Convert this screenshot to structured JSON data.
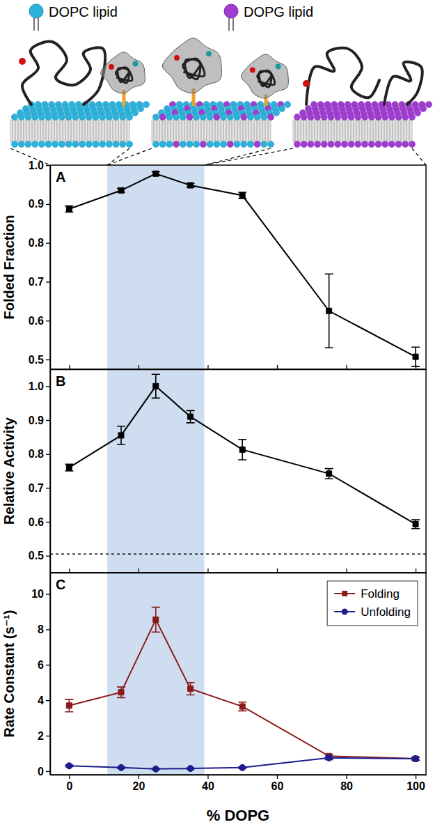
{
  "illustration": {
    "lipids": [
      {
        "label": "DOPC lipid",
        "color": "#2bb3dd"
      },
      {
        "label": "DOPG lipid",
        "color": "#a03cd2"
      }
    ]
  },
  "highlight": [
    11,
    39
  ],
  "chart_data": [
    {
      "type": "line",
      "panel_label": "A",
      "ylabel": "Folded Fraction",
      "x": [
        0,
        15,
        25,
        35,
        50,
        75,
        100
      ],
      "values": [
        0.887,
        0.935,
        0.978,
        0.948,
        0.922,
        0.625,
        0.507
      ],
      "errors": [
        0.008,
        0.005,
        0.005,
        0.005,
        0.008,
        0.095,
        0.025
      ],
      "color": "#000000",
      "marker": "square",
      "xlim": [
        -5.5,
        103
      ],
      "xticks": [
        0,
        20,
        40,
        60,
        80,
        100
      ],
      "ylim": [
        0.475,
        1.0
      ],
      "yticks": [
        0.5,
        0.6,
        0.7,
        0.8,
        0.9,
        {
          "value": 1,
          "label": "1.0"
        }
      ],
      "tick_labels": "y"
    },
    {
      "type": "line",
      "panel_label": "B",
      "ylabel": "Relative Activity",
      "x": [
        0,
        15,
        25,
        35,
        50,
        75,
        100
      ],
      "values": [
        0.76,
        0.855,
        1.0,
        0.91,
        0.813,
        0.742,
        0.593
      ],
      "errors": [
        0.01,
        0.027,
        0.035,
        0.018,
        0.03,
        0.015,
        0.013
      ],
      "color": "#000000",
      "marker": "square",
      "reference": {
        "value": 0.505,
        "line_style": "dashed"
      },
      "xlim": [
        -5.5,
        103
      ],
      "xticks": [
        0,
        20,
        40,
        60,
        80,
        100
      ],
      "ylim": [
        0.45,
        1.05
      ],
      "yticks": [
        0.5,
        0.6,
        0.7,
        0.8,
        0.9,
        {
          "value": 1,
          "label": "1.0"
        }
      ],
      "tick_labels": "y"
    },
    {
      "type": "line",
      "panel_label": "C",
      "ylabel": "Rate Constant  (s⁻¹)",
      "xlabel": "% DOPG",
      "x": [
        0,
        15,
        25,
        35,
        50,
        75,
        100
      ],
      "series": [
        {
          "name": "Folding",
          "color": "#8b1a1a",
          "marker": "square",
          "values": [
            3.7,
            4.45,
            8.55,
            4.65,
            3.65,
            0.85,
            0.7
          ],
          "errors": [
            0.35,
            0.3,
            0.7,
            0.35,
            0.25,
            0.1,
            0.08
          ]
        },
        {
          "name": "Unfolding",
          "color": "#1c1c8c",
          "marker": "circle",
          "values": [
            0.3,
            0.2,
            0.12,
            0.15,
            0.2,
            0.75,
            0.7
          ],
          "errors": [
            0.05,
            0.04,
            0.03,
            0.03,
            0.04,
            0.1,
            0.08
          ]
        }
      ],
      "legend": "upper right",
      "xlim": [
        -5.5,
        103
      ],
      "xticks": [
        0,
        20,
        40,
        60,
        80,
        100
      ],
      "ylim": [
        -0.2,
        11.2
      ],
      "yticks": [
        0,
        2,
        4,
        6,
        8,
        10
      ]
    }
  ]
}
